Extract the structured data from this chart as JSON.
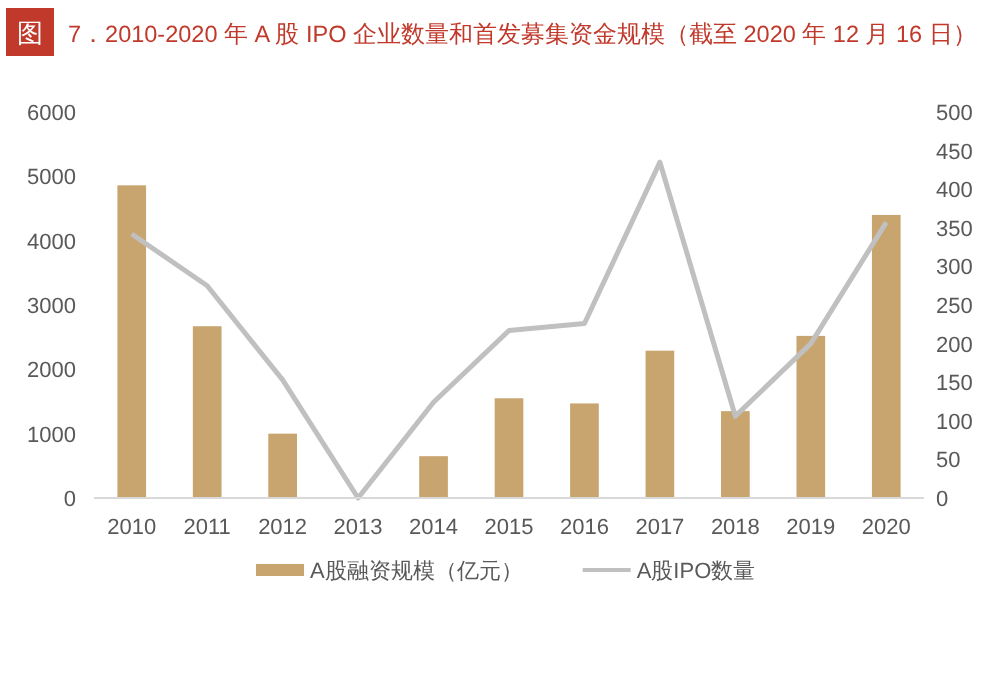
{
  "chart_data": {
    "type": "bar",
    "title": "图 7．2010-2020 年 A 股 IPO 企业数量和首发募集资金规模（截至 2020 年 12 月 16 日）",
    "categories": [
      "2010",
      "2011",
      "2012",
      "2013",
      "2014",
      "2015",
      "2016",
      "2017",
      "2018",
      "2019",
      "2020"
    ],
    "series": [
      {
        "name": "A股融资规模（亿元）",
        "color": "#c8a46e",
        "values": [
          4860,
          2670,
          1000,
          0,
          650,
          1550,
          1470,
          2290,
          1350,
          2520,
          4400
        ]
      },
      {
        "name": "A股IPO数量",
        "type": "line",
        "axis": "y2",
        "color": "#c0c0c0",
        "values": [
          342,
          275,
          153,
          0,
          124,
          217,
          226,
          435,
          106,
          200,
          357
        ]
      }
    ],
    "ylim": [
      0,
      6000
    ],
    "yticks": [
      0,
      1000,
      2000,
      3000,
      4000,
      5000,
      6000
    ],
    "y2lim": [
      0,
      500
    ],
    "y2ticks": [
      0,
      50,
      100,
      150,
      200,
      250,
      300,
      350,
      400,
      450,
      500
    ],
    "grid": false,
    "legend": "bottom",
    "marker": "none",
    "line_style": "solid"
  }
}
